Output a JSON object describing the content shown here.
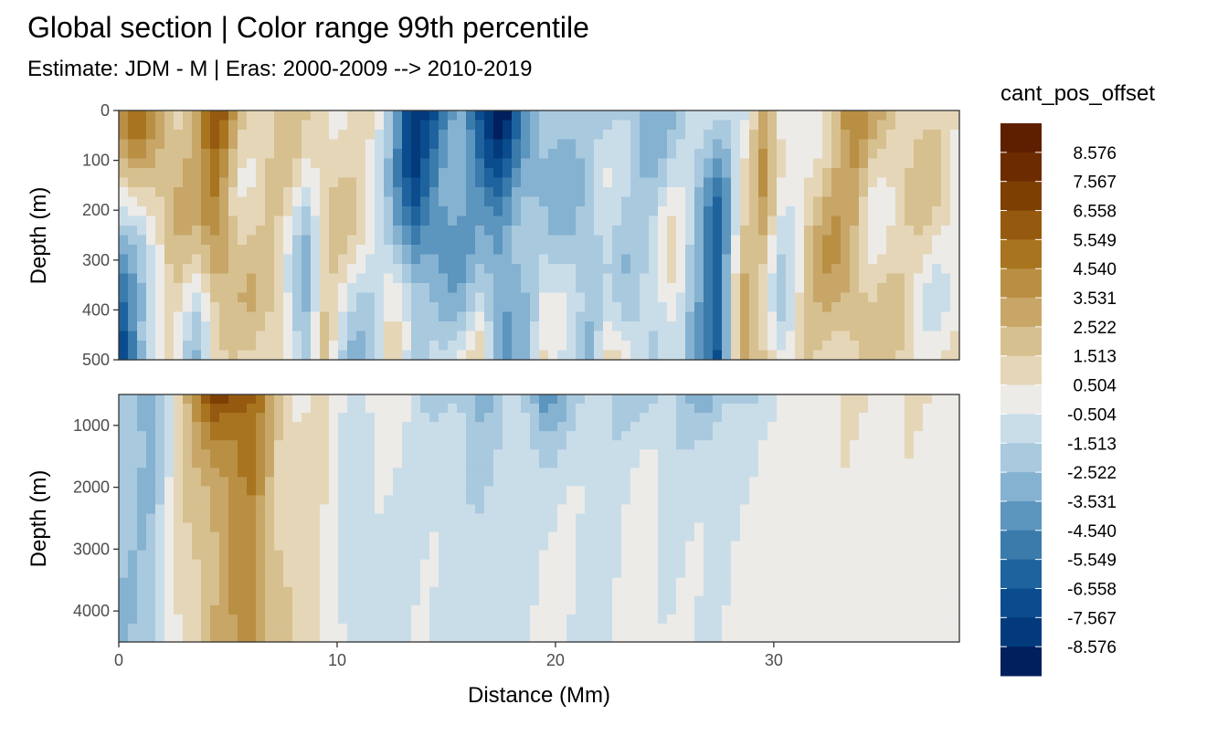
{
  "chart_data": {
    "type": "heatmap",
    "title": "Global section | Color range 99th percentile",
    "subtitle": "Estimate: JDM - M | Eras: 2000-2009 --> 2010-2019",
    "xlabel": "Distance (Mm)",
    "ylabel": "Depth (m)",
    "xlim": [
      0,
      38.5
    ],
    "x_ticks": [
      "0",
      "10",
      "20",
      "30"
    ],
    "x_tick_values": [
      0,
      10,
      20,
      30
    ],
    "panels": [
      {
        "name": "upper",
        "ylim": [
          0,
          500
        ],
        "y_reversed": true,
        "y_ticks": [
          "0",
          "100",
          "200",
          "300",
          "400",
          "500"
        ],
        "y_tick_values": [
          0,
          100,
          200,
          300,
          400,
          500
        ]
      },
      {
        "name": "lower",
        "ylim": [
          500,
          4500
        ],
        "y_reversed": true,
        "y_ticks": [
          "1000",
          "2000",
          "3000",
          "4000"
        ],
        "y_tick_values": [
          1000,
          2000,
          3000,
          4000
        ]
      }
    ],
    "legend": {
      "title": "cant_pos_offset",
      "placement": "right",
      "labels": [
        "8.576",
        "7.567",
        "6.558",
        "5.549",
        "4.540",
        "3.531",
        "2.522",
        "1.513",
        "0.504",
        "-0.504",
        "-1.513",
        "-2.522",
        "-3.531",
        "-4.540",
        "-5.549",
        "-6.558",
        "-7.567",
        "-8.576"
      ],
      "colors": [
        "#5e1f00",
        "#6d2c00",
        "#7e3f03",
        "#955a10",
        "#a8741f",
        "#b98f44",
        "#c7a667",
        "#d7c08f",
        "#e6d6b8",
        "#ecebe8",
        "#c9dde9",
        "#a9c9df",
        "#85b2d1",
        "#5c95be",
        "#3a7bac",
        "#1e639d",
        "#0a4c8d",
        "#033a7c",
        "#001f5c"
      ]
    },
    "fields": {
      "upper": {
        "x_knots": [
          0,
          0.8,
          1.5,
          2.5,
          3.5,
          4.5,
          5.5,
          6.4,
          7.5,
          8.5,
          9.5,
          10.5,
          11.5,
          12.5,
          13.5,
          14.5,
          15.5,
          16.5,
          17.5,
          18.5,
          19.5,
          20.5,
          21.5,
          22.5,
          23.5,
          24.5,
          25.5,
          26.5,
          27.5,
          28.5,
          29.5,
          30.5,
          31.5,
          32.5,
          33.5,
          34.5,
          35.5,
          36.5,
          37.5,
          38.5
        ],
        "surface": [
          3.5,
          4.2,
          3.8,
          2.5,
          3.5,
          6.5,
          2.5,
          1.5,
          1.0,
          0.6,
          1.5,
          2.0,
          0.5,
          -3.0,
          -8.5,
          -7.0,
          -4.0,
          -6.5,
          -8.5,
          -4.5,
          -3.0,
          -2.0,
          -2.0,
          -3.0,
          -2.0,
          -2.2,
          -1.5,
          -1.5,
          -2.0,
          -0.8,
          2.5,
          -1.0,
          1.0,
          2.0,
          4.0,
          2.0,
          1.5,
          1.0,
          0.8,
          0.5
        ],
        "bottom": [
          -8.5,
          -5.0,
          -2.0,
          0.8,
          -1.5,
          1.5,
          0.8,
          1.0,
          1.5,
          -3.5,
          1.5,
          -1.5,
          -1.5,
          0.8,
          -2.0,
          -0.8,
          -1.5,
          0.8,
          -2.5,
          -1.5,
          0.5,
          -2.0,
          -3.0,
          1.5,
          -1.5,
          -1.5,
          1.0,
          -3.5,
          -8.5,
          3.5,
          2.0,
          -1.0,
          1.5,
          2.5,
          2.0,
          0.8,
          1.0,
          0.8,
          0.5,
          0.5
        ]
      },
      "lower": {
        "x_knots": [
          0,
          1.5,
          3.0,
          4.5,
          6.0,
          7.5,
          9.0,
          10.5,
          12.0,
          13.5,
          15.0,
          16.5,
          18.0,
          19.5,
          21.0,
          22.5,
          24.0,
          25.5,
          27.0,
          28.5,
          30.0,
          31.5,
          33.0,
          34.5,
          36.0,
          38.5
        ],
        "upper_layer": [
          -2.5,
          -3.5,
          2.0,
          8.0,
          6.0,
          1.0,
          0.5,
          -0.8,
          0.5,
          -0.8,
          -2.0,
          -3.0,
          -1.0,
          -4.5,
          -2.0,
          -1.5,
          -2.5,
          -1.5,
          -3.5,
          -1.5,
          -1.0,
          0.3,
          0.5,
          0.5,
          0.3,
          0.2
        ],
        "deep": [
          -2.5,
          -2.0,
          1.0,
          2.5,
          4.0,
          1.5,
          0.8,
          -0.8,
          -1.0,
          -0.6,
          -0.8,
          -1.0,
          -1.0,
          0.0,
          -0.6,
          -0.8,
          0.0,
          -0.6,
          -0.6,
          0.0,
          0.0,
          0.0,
          0.0,
          0.0,
          0.0,
          0.0
        ]
      }
    }
  }
}
